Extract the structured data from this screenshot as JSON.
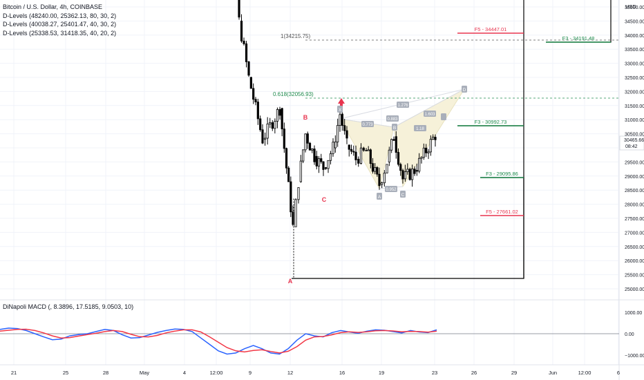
{
  "legend": {
    "title": "Bitcoin / U.S. Dollar, 4h, COINBASE",
    "lines": [
      "D-Levels (48240.00, 25362.13, 80, 30, 2)",
      "D-Levels (40038.27, 25401.47, 40, 30, 2)",
      "D-Levels (25338.53, 31418.35, 40, 20, 2)"
    ]
  },
  "macd_legend": "DiNapoli MACD (, 8.3896, 17.5185, 9.0503, 10)",
  "colors": {
    "up": "#ffffff",
    "down": "#000000",
    "wick": "#000000",
    "fib_red": "#e8344f",
    "fib_green": "#1e8a4c",
    "label_red": "#e8344f",
    "pattern_fill": "#f6f1d9",
    "pattern_stroke": "#e8e2bf",
    "macd_line": "#2962ff",
    "signal_line": "#f23645",
    "grid": "#f0f3fa",
    "axis_text": "#131722",
    "marker_gray": "#a9afba"
  },
  "chart_data": [
    {
      "type": "candlestick",
      "title": "Bitcoin / U.S. Dollar, 4h, COINBASE",
      "y_unit": "USD",
      "ylim": [
        24750,
        36250
      ],
      "y_ticks": [
        25000,
        25500,
        26000,
        26500,
        27000,
        27500,
        28000,
        28500,
        29000,
        29500,
        30000,
        30500,
        31000,
        31500,
        32000,
        32500,
        33000,
        33500,
        34000,
        34500,
        35000
      ],
      "x_ticks": [
        "21",
        "25",
        "28",
        "May",
        "4",
        "12:00",
        "9",
        "12",
        "16",
        "19",
        "23",
        "26",
        "29",
        "Jun",
        "12:00",
        "6"
      ],
      "last_price": "30465.66",
      "countdown": "08:42",
      "price_path": [
        {
          "x": "Apr 28",
          "p": 36300
        },
        {
          "x": "May 6",
          "p": 36100
        },
        {
          "x": "May 8",
          "p": 34500
        },
        {
          "x": "May 9",
          "p": 32500
        },
        {
          "x": "May 10",
          "p": 30300
        },
        {
          "x": "May 11",
          "p": 31400
        },
        {
          "x": "May 12",
          "p": 27200
        },
        {
          "x": "May 12b",
          "p": 28800
        },
        {
          "x": "May 13",
          "p": 30500
        },
        {
          "x": "May 14",
          "p": 29700
        },
        {
          "x": "May 15",
          "p": 29300
        },
        {
          "x": "May 15b",
          "p": 30000
        },
        {
          "x": "May 16",
          "p": 31200
        },
        {
          "x": "May 16b",
          "p": 30100
        },
        {
          "x": "May 17",
          "p": 29600
        },
        {
          "x": "May 18",
          "p": 29900
        },
        {
          "x": "May 19",
          "p": 28700
        },
        {
          "x": "May 20",
          "p": 29500
        },
        {
          "x": "May 21",
          "p": 30400
        },
        {
          "x": "May 21b",
          "p": 28900
        },
        {
          "x": "May 22",
          "p": 29200
        },
        {
          "x": "May 23",
          "p": 30465.66
        }
      ],
      "pattern_labels": [
        "B",
        "C",
        "A"
      ],
      "pattern_points": [
        "X",
        "A",
        "B",
        "C",
        "D"
      ],
      "pattern_ratios": [
        "0.773",
        "0.883",
        "1.276",
        "0.952",
        "1.603",
        "1.18"
      ],
      "annotations": [
        {
          "text": "1(34215.75)",
          "price": 34215.75
        },
        {
          "text": "0.618(32056.93)",
          "price": 32056.93
        },
        {
          "text": "F5 - 34447.01",
          "price": 34447.01,
          "color": "red"
        },
        {
          "text": "F3 - 34191.48",
          "price": 34191.48,
          "color": "green"
        },
        {
          "text": "F3 - 30992.73",
          "price": 30992.73,
          "color": "green"
        },
        {
          "text": "F3 - 29095.86",
          "price": 29095.86,
          "color": "green"
        },
        {
          "text": "F5 - 27661.02",
          "price": 27661.02,
          "color": "red"
        }
      ],
      "low_point": 25400
    },
    {
      "type": "line",
      "title": "DiNapoli MACD (, 8.3896, 17.5185, 9.0503, 10)",
      "ylim": [
        -1250,
        1250
      ],
      "y_ticks": [
        "1000.00",
        "0.00",
        "−1000.00"
      ],
      "series": [
        {
          "name": "MACD",
          "values": [
            200,
            260,
            240,
            150,
            0,
            -150,
            -280,
            -250,
            -100,
            -40,
            0,
            100,
            200,
            150,
            -50,
            -200,
            -180,
            -60,
            60,
            150,
            220,
            200,
            100,
            -200,
            -500,
            -800,
            -950,
            -900,
            -700,
            -550,
            -700,
            -900,
            -950,
            -700,
            -300,
            0,
            -100,
            -150,
            50,
            150,
            80,
            20,
            120,
            180,
            160,
            100,
            40,
            150,
            80,
            50,
            180
          ]
        },
        {
          "name": "Signal",
          "values": [
            120,
            160,
            200,
            210,
            150,
            40,
            -100,
            -200,
            -180,
            -110,
            -40,
            20,
            100,
            150,
            100,
            -30,
            -140,
            -150,
            -80,
            40,
            120,
            180,
            180,
            80,
            -150,
            -400,
            -650,
            -800,
            -850,
            -780,
            -750,
            -830,
            -900,
            -820,
            -600,
            -300,
            -150,
            -130,
            -50,
            50,
            90,
            60,
            90,
            140,
            150,
            130,
            90,
            110,
            100,
            70,
            120
          ]
        }
      ]
    }
  ]
}
